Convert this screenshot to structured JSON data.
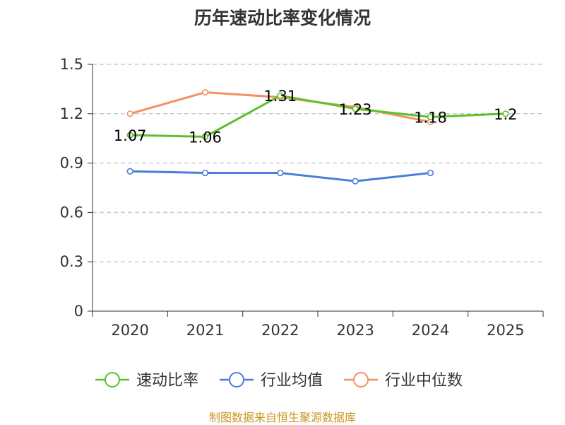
{
  "chart_data": {
    "type": "line",
    "title": "历年速动比率变化情况",
    "categories": [
      "2020",
      "2021",
      "2022",
      "2023",
      "2024",
      "2025"
    ],
    "ylim": [
      0,
      1.5
    ],
    "yticks": [
      "0",
      "0.3",
      "0.6",
      "0.9",
      "1.2",
      "1.5"
    ],
    "ytick_values": [
      0,
      0.3,
      0.6,
      0.9,
      1.2,
      1.5
    ],
    "grid": true,
    "legend_position": "bottom",
    "series": [
      {
        "name": "速动比率",
        "color": "#5cc02f",
        "values": [
          1.07,
          1.06,
          1.31,
          1.23,
          1.18,
          1.2
        ],
        "labels": [
          "1.07",
          "1.06",
          "1.31",
          "1.23",
          "1.18",
          "1.2"
        ]
      },
      {
        "name": "行业均值",
        "color": "#4a7ddb",
        "values": [
          0.85,
          0.84,
          0.84,
          0.79,
          0.84,
          null
        ]
      },
      {
        "name": "行业中位数",
        "color": "#f49160",
        "values": [
          1.2,
          1.33,
          1.3,
          1.24,
          1.15,
          null
        ]
      }
    ]
  },
  "source": "制图数据来自恒生聚源数据库"
}
